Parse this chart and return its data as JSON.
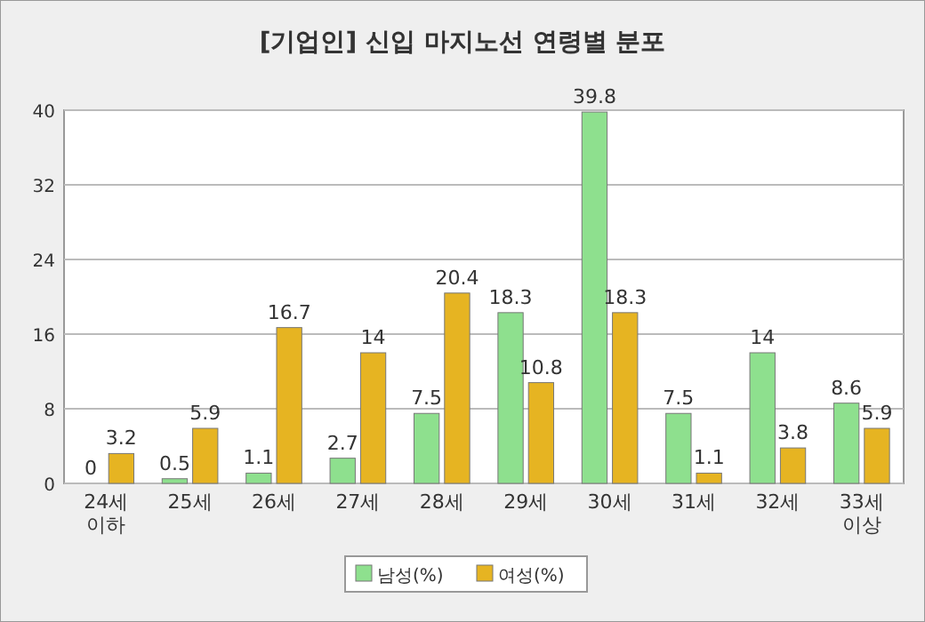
{
  "chart_data": {
    "type": "bar",
    "title": "[기업인] 신입 마지노선 연령별 분포",
    "categories": [
      "24세 이하",
      "25세",
      "26세",
      "27세",
      "28세",
      "29세",
      "30세",
      "31세",
      "32세",
      "33세 이상"
    ],
    "series": [
      {
        "name": "남성(%)",
        "color": "#8ee08e",
        "values": [
          0,
          0.5,
          1.1,
          2.7,
          7.5,
          18.3,
          39.8,
          7.5,
          14,
          8.6
        ]
      },
      {
        "name": "여성(%)",
        "color": "#e6b422",
        "values": [
          3.2,
          5.9,
          16.7,
          14,
          20.4,
          10.8,
          18.3,
          1.1,
          3.8,
          5.9
        ]
      }
    ],
    "ylim": [
      0,
      40
    ],
    "yticks": [
      0,
      8,
      16,
      24,
      32,
      40
    ],
    "grid": "y",
    "legend": "bottom",
    "data_labels": true
  }
}
